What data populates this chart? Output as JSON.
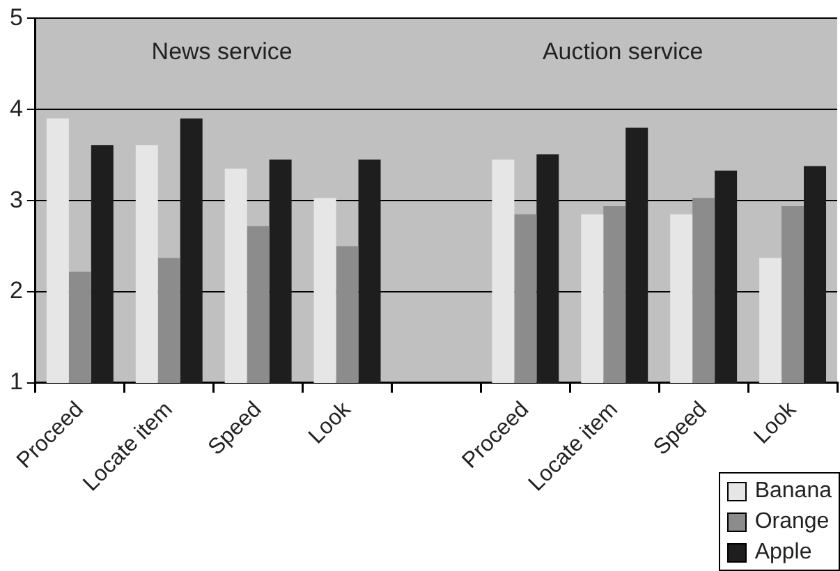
{
  "chart_data": {
    "type": "bar",
    "categories": [
      "Proceed",
      "Locate item",
      "Speed",
      "Look",
      null,
      "Proceed",
      "Locate item",
      "Speed",
      "Look"
    ],
    "series": [
      {
        "name": "Banana",
        "color": "#e6e6e6",
        "values": [
          3.9,
          3.61,
          3.35,
          3.03,
          null,
          3.45,
          2.85,
          2.85,
          2.37
        ]
      },
      {
        "name": "Orange",
        "color": "#8c8c8c",
        "values": [
          2.22,
          2.37,
          2.72,
          2.5,
          null,
          2.85,
          2.94,
          3.03,
          2.94
        ]
      },
      {
        "name": "Apple",
        "color": "#1e1e1e",
        "values": [
          3.61,
          3.9,
          3.45,
          3.45,
          null,
          3.51,
          3.8,
          3.33,
          3.38
        ]
      }
    ],
    "annotations": [
      "News service",
      "Auction service"
    ],
    "ylim": [
      1,
      5
    ],
    "yticks": [
      1,
      2,
      3,
      4,
      5
    ],
    "grid": "y",
    "legend": "bottom right"
  }
}
